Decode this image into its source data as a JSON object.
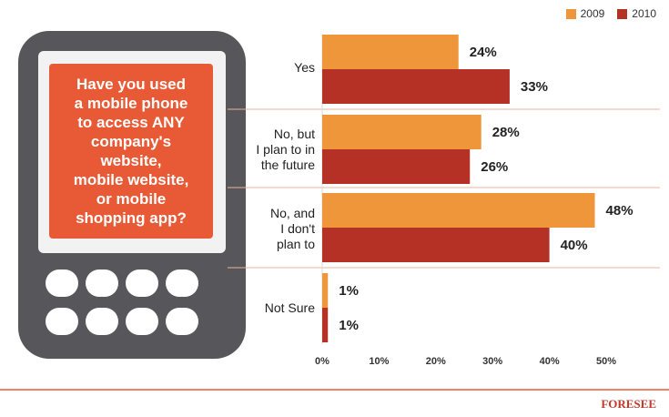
{
  "question": "Have you used\na mobile phone\nto access ANY\ncompany's\nwebsite,\nmobile website,\nor mobile\nshopping app?",
  "legend": [
    {
      "name": "2009",
      "color": "#f0963a"
    },
    {
      "name": "2010",
      "color": "#b53025"
    }
  ],
  "logo_text": "FORESEE",
  "chart_data": {
    "type": "bar",
    "orientation": "horizontal",
    "categories": [
      "Yes",
      "No, but\nI plan to in\nthe future",
      "No, and\nI don't\nplan to",
      "Not Sure"
    ],
    "series": [
      {
        "name": "2009",
        "color": "#f0963a",
        "values": [
          24,
          28,
          48,
          1
        ],
        "labels": [
          "24%",
          "28%",
          "48%",
          "1%"
        ]
      },
      {
        "name": "2010",
        "color": "#b53025",
        "values": [
          33,
          26,
          40,
          1
        ],
        "labels": [
          "33%",
          "26%",
          "40%",
          "1%"
        ]
      }
    ],
    "xlim": [
      0,
      50
    ],
    "xticks": [
      "0%",
      "10%",
      "20%",
      "30%",
      "40%",
      "50%"
    ],
    "legend_position": "top-right",
    "grid": false
  }
}
